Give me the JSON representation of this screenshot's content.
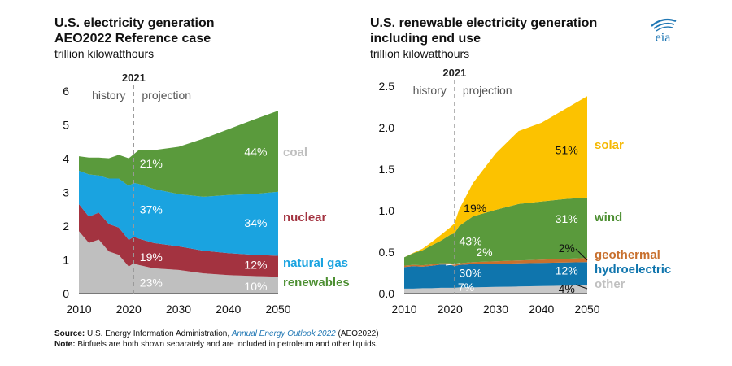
{
  "logo": {
    "text": "eia",
    "color": "#1f77b4"
  },
  "source": {
    "label": "Source:",
    "text": "U.S. Energy Information Administration,",
    "link": "Annual Energy Outlook 2022",
    "suffix": "(AEO2022)"
  },
  "note": {
    "label": "Note:",
    "text": "Biofuels are both shown separately and are included in petroleum and other liquids."
  },
  "chart_data": [
    {
      "type": "area",
      "title_line1": "U.S. electricity generation",
      "title_line2": "AEO2022 Reference case",
      "units": "trillion kilowatthours",
      "divider_year": 2021,
      "divider_label": "2021",
      "history_label": "history",
      "projection_label": "projection",
      "xlim": [
        2010,
        2050
      ],
      "ylim": [
        0,
        6
      ],
      "xticks": [
        "2010",
        "2020",
        "2030",
        "2040",
        "2050"
      ],
      "yticks": [
        "0",
        "1",
        "2",
        "3",
        "4",
        "5",
        "6"
      ],
      "x": [
        2010,
        2012,
        2014,
        2016,
        2018,
        2020,
        2021,
        2022,
        2025,
        2030,
        2035,
        2040,
        2045,
        2050
      ],
      "series": [
        {
          "name": "coal",
          "label": "coal",
          "color": "#bfbfbf",
          "label_color": "#bfbfbf",
          "values": [
            1.85,
            1.5,
            1.6,
            1.25,
            1.15,
            0.8,
            0.9,
            0.85,
            0.75,
            0.7,
            0.6,
            0.55,
            0.52,
            0.5
          ]
        },
        {
          "name": "nuclear",
          "label": "nuclear",
          "color": "#a33340",
          "label_color": "#a33340",
          "values": [
            0.8,
            0.78,
            0.8,
            0.81,
            0.81,
            0.79,
            0.78,
            0.78,
            0.75,
            0.7,
            0.67,
            0.65,
            0.63,
            0.62
          ]
        },
        {
          "name": "natural gas",
          "label": "natural gas",
          "color": "#1aa3e0",
          "label_color": "#1aa3e0",
          "values": [
            0.99,
            1.25,
            1.1,
            1.35,
            1.45,
            1.6,
            1.6,
            1.62,
            1.6,
            1.55,
            1.6,
            1.72,
            1.8,
            1.9
          ]
        },
        {
          "name": "renewables",
          "label": "renewables",
          "color": "#5a9a3c",
          "label_color": "#4d8f32",
          "values": [
            0.43,
            0.5,
            0.53,
            0.6,
            0.7,
            0.82,
            0.85,
            1.0,
            1.15,
            1.4,
            1.72,
            1.95,
            2.2,
            2.4
          ]
        }
      ],
      "annotations": [
        {
          "text": "21%",
          "x": 2024.5,
          "y": 3.85,
          "color": "#ffffff"
        },
        {
          "text": "44%",
          "x": 2045.5,
          "y": 4.2,
          "color": "#ffffff"
        },
        {
          "text": "37%",
          "x": 2024.5,
          "y": 2.5,
          "color": "#ffffff"
        },
        {
          "text": "34%",
          "x": 2045.5,
          "y": 2.1,
          "color": "#ffffff"
        },
        {
          "text": "19%",
          "x": 2024.5,
          "y": 1.08,
          "color": "#ffffff"
        },
        {
          "text": "12%",
          "x": 2045.5,
          "y": 0.85,
          "color": "#ffffff"
        },
        {
          "text": "23%",
          "x": 2024.5,
          "y": 0.32,
          "color": "#ffffff"
        },
        {
          "text": "10%",
          "x": 2045.5,
          "y": 0.22,
          "color": "#ffffff"
        }
      ]
    },
    {
      "type": "area",
      "title_line1": "U.S. renewable electricity generation",
      "title_line2": "including end use",
      "units": "trillion kilowatthours",
      "divider_year": 2021,
      "divider_label": "2021",
      "history_label": "history",
      "projection_label": "projection",
      "xlim": [
        2010,
        2050
      ],
      "ylim": [
        0,
        2.5
      ],
      "xticks": [
        "2010",
        "2020",
        "2030",
        "2040",
        "2050"
      ],
      "yticks": [
        "0.0",
        "0.5",
        "1.0",
        "1.5",
        "2.0",
        "2.5"
      ],
      "x": [
        2010,
        2012,
        2014,
        2016,
        2018,
        2020,
        2021,
        2022,
        2025,
        2030,
        2035,
        2040,
        2045,
        2050
      ],
      "series": [
        {
          "name": "other",
          "label": "other",
          "color": "#c8c8c8",
          "label_color": "#c0c0c0",
          "values": [
            0.06,
            0.06,
            0.065,
            0.065,
            0.07,
            0.07,
            0.07,
            0.075,
            0.075,
            0.08,
            0.085,
            0.09,
            0.095,
            0.1
          ]
        },
        {
          "name": "hydroelectric",
          "label": "hydroelectric",
          "color": "#0f75ad",
          "label_color": "#0f75ad",
          "values": [
            0.26,
            0.27,
            0.26,
            0.27,
            0.28,
            0.28,
            0.26,
            0.27,
            0.28,
            0.28,
            0.28,
            0.28,
            0.28,
            0.28
          ]
        },
        {
          "name": "geothermal",
          "label": "geothermal",
          "color": "#c8702e",
          "label_color": "#c8702e",
          "values": [
            0.017,
            0.017,
            0.017,
            0.017,
            0.017,
            0.017,
            0.017,
            0.02,
            0.025,
            0.03,
            0.035,
            0.04,
            0.045,
            0.05
          ]
        },
        {
          "name": "wind",
          "label": "wind",
          "color": "#5a9a3c",
          "label_color": "#4d8f32",
          "values": [
            0.1,
            0.14,
            0.18,
            0.23,
            0.27,
            0.34,
            0.38,
            0.45,
            0.55,
            0.62,
            0.68,
            0.7,
            0.72,
            0.73
          ]
        },
        {
          "name": "solar",
          "label": "solar",
          "color": "#fcc200",
          "label_color": "#f5b800",
          "values": [
            0.0,
            0.005,
            0.02,
            0.04,
            0.07,
            0.09,
            0.12,
            0.2,
            0.4,
            0.68,
            0.88,
            0.95,
            1.08,
            1.22
          ]
        }
      ],
      "annotations": [
        {
          "text": "51%",
          "x": 2045.5,
          "y": 1.73,
          "color": "#111111"
        },
        {
          "text": "19%",
          "x": 2025.5,
          "y": 1.03,
          "color": "#111111"
        },
        {
          "text": "31%",
          "x": 2045.5,
          "y": 0.9,
          "color": "#ffffff"
        },
        {
          "text": "43%",
          "x": 2024.5,
          "y": 0.63,
          "color": "#ffffff"
        },
        {
          "text": "2%",
          "x": 2027.5,
          "y": 0.5,
          "color": "#ffffff"
        },
        {
          "text": "2%",
          "x": 2045.5,
          "y": 0.55,
          "color": "#111111"
        },
        {
          "text": "30%",
          "x": 2024.5,
          "y": 0.25,
          "color": "#ffffff"
        },
        {
          "text": "12%",
          "x": 2045.5,
          "y": 0.28,
          "color": "#ffffff"
        },
        {
          "text": "7%",
          "x": 2023.5,
          "y": 0.08,
          "color": "#ffffff"
        },
        {
          "text": "4%",
          "x": 2045.5,
          "y": 0.06,
          "color": "#111111"
        }
      ]
    }
  ]
}
